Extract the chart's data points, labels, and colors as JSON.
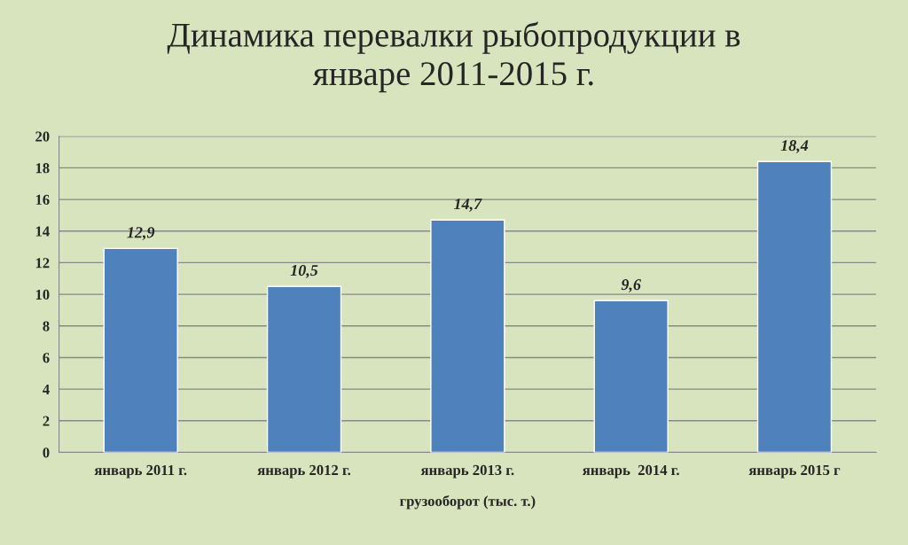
{
  "chart_data": {
    "type": "bar",
    "title": "Динамика перевалки рыбопродукции в\nянваре 2011-2015 г.",
    "categories": [
      "январь 2011 г.",
      "январь 2012 г.",
      "январь 2013 г.",
      "январь  2014 г.",
      "январь 2015 г"
    ],
    "values": [
      12.9,
      10.5,
      14.7,
      9.6,
      18.4
    ],
    "color": "#4f81bd",
    "value_labels": [
      "12,9",
      "10,5",
      "14,7",
      "9,6",
      "18,4"
    ],
    "xlabel": "грузооборот (тыс. т.)",
    "ylim": [
      0,
      20
    ],
    "yticks": [
      0,
      2,
      4,
      6,
      8,
      10,
      12,
      14,
      16,
      18,
      20
    ],
    "grid": "y"
  }
}
